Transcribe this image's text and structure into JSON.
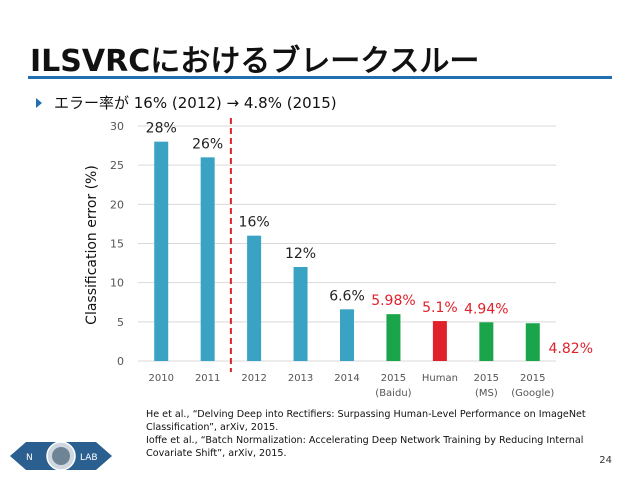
{
  "slide": {
    "title": "ILSVRCにおけるブレークスルー",
    "bullet": "エラー率が 16% (2012) → 4.8% (2015)",
    "page_number": "24",
    "references": [
      "He et al., “Delving Deep into Rectifiers: Surpassing Human-Level Performance on ImageNet Classification”, arXiv, 2015.",
      "Ioffe et al., “Batch Normalization: Accelerating Deep Network Training by Reducing Internal Covariate Shift”, arXiv, 2015."
    ],
    "logo": {
      "left_letter": "N",
      "right_text": "LAB"
    },
    "colors": {
      "accent": "#1f6fb2",
      "bar_default": "#3aa3c4",
      "bar_human": "#e0212b",
      "bar_highlight": "#1aa54a",
      "label_red": "#e0212b"
    }
  },
  "chart_data": {
    "type": "bar",
    "ylabel": "Classification error (%)",
    "ylim": [
      0,
      30
    ],
    "yticks": [
      0,
      5,
      10,
      15,
      20,
      25,
      30
    ],
    "grid": true,
    "categories": [
      {
        "line1": "2010",
        "line2": ""
      },
      {
        "line1": "2011",
        "line2": ""
      },
      {
        "line1": "2012",
        "line2": ""
      },
      {
        "line1": "2013",
        "line2": ""
      },
      {
        "line1": "2014",
        "line2": ""
      },
      {
        "line1": "2015",
        "line2": "(Baidu)"
      },
      {
        "line1": "Human",
        "line2": ""
      },
      {
        "line1": "2015",
        "line2": "(MS)"
      },
      {
        "line1": "2015",
        "line2": "(Google)"
      }
    ],
    "values": [
      28,
      26,
      16,
      12,
      6.6,
      5.98,
      5.1,
      4.94,
      4.82
    ],
    "data_labels": [
      "28%",
      "26%",
      "16%",
      "12%",
      "6.6%",
      "5.98%",
      "5.1%",
      "4.94%",
      "4.82%"
    ],
    "bar_colors": [
      "#3aa3c4",
      "#3aa3c4",
      "#3aa3c4",
      "#3aa3c4",
      "#3aa3c4",
      "#1aa54a",
      "#e0212b",
      "#1aa54a",
      "#1aa54a"
    ],
    "label_colors": [
      "#222222",
      "#222222",
      "#222222",
      "#222222",
      "#222222",
      "#e0212b",
      "#e0212b",
      "#e0212b",
      "#e0212b"
    ],
    "divider": {
      "between": [
        "2011",
        "2012"
      ],
      "color": "#e0212b",
      "style": "dashed"
    }
  }
}
